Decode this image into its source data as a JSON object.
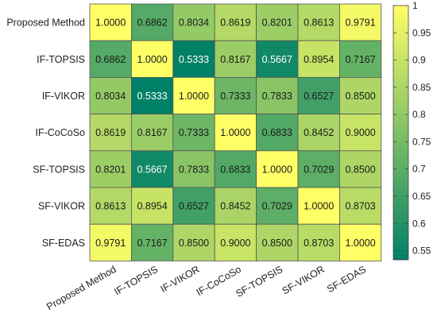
{
  "chart_data": {
    "type": "heatmap",
    "title": "",
    "xlabel": "",
    "ylabel": "",
    "rows": [
      "Proposed Method",
      "IF-TOPSIS",
      "IF-VIKOR",
      "IF-CoCoSo",
      "SF-TOPSIS",
      "SF-VIKOR",
      "SF-EDAS"
    ],
    "columns": [
      "Proposed Method",
      "IF-TOPSIS",
      "IF-VIKOR",
      "IF-CoCoSo",
      "SF-TOPSIS",
      "SF-VIKOR",
      "SF-EDAS"
    ],
    "values": [
      [
        1.0,
        0.6862,
        0.8034,
        0.8619,
        0.8201,
        0.8613,
        0.9791
      ],
      [
        0.6862,
        1.0,
        0.5333,
        0.8167,
        0.5667,
        0.8954,
        0.7167
      ],
      [
        0.8034,
        0.5333,
        1.0,
        0.7333,
        0.7833,
        0.6527,
        0.85
      ],
      [
        0.8619,
        0.8167,
        0.7333,
        1.0,
        0.6833,
        0.8452,
        0.9
      ],
      [
        0.8201,
        0.5667,
        0.7833,
        0.6833,
        1.0,
        0.7029,
        0.85
      ],
      [
        0.8613,
        0.8954,
        0.6527,
        0.8452,
        0.7029,
        1.0,
        0.8703
      ],
      [
        0.9791,
        0.7167,
        0.85,
        0.9,
        0.85,
        0.8703,
        1.0
      ]
    ],
    "value_format": "4 decimals",
    "colorbar": {
      "range": [
        0.5333,
        1.0
      ],
      "ticks": [
        "1",
        "0.95",
        "0.9",
        "0.85",
        "0.8",
        "0.75",
        "0.7",
        "0.65",
        "0.6",
        "0.55"
      ],
      "colormap": "summer",
      "colors": [
        "#008066",
        "#ffff66"
      ]
    },
    "legend_position": "right"
  }
}
